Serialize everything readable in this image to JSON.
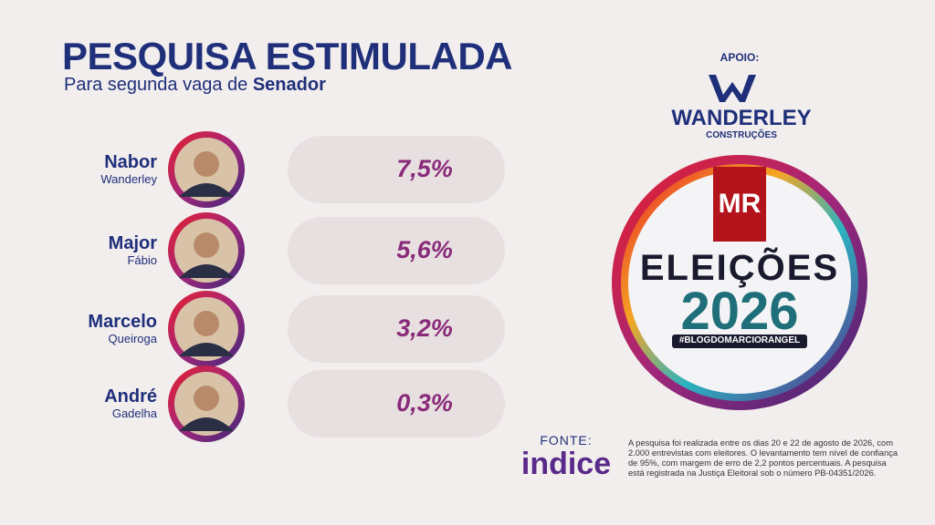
{
  "header": {
    "title": "PESQUISA ESTIMULADA",
    "subtitle": "Para segunda vaga de",
    "subtitle_emphasis": "Senador"
  },
  "candidates": [
    {
      "first_name": "Nabor",
      "last_name": "Wanderley",
      "result": "7,5%"
    },
    {
      "first_name": "Major",
      "last_name": "Fábio",
      "result": "5,6%"
    },
    {
      "first_name": "Marcelo",
      "last_name": "Queiroga",
      "result": "3,2%"
    },
    {
      "first_name": "André",
      "last_name": "Gadelha",
      "result": "0,3%"
    }
  ],
  "sponsor": {
    "label": "APOIO:",
    "name": "WANDERLEY",
    "subname": "CONSTRUÇÕES"
  },
  "badge": {
    "initials": "MR",
    "title": "ELEIÇÕES",
    "year": "2026",
    "hashtag": "#BLOGDOMARCIORANGEL"
  },
  "source": {
    "label": "FONTE:",
    "name": "indice"
  },
  "note": "A pesquisa foi realizada entre os dias 20 e 22 de agosto de 2026, com 2.000 entrevistas com eleitores. O levantamento tem nível de confiança de 95%, com margem de erro de 2,2 pontos percentuais. A pesquisa está registrada na Justiça Eleitoral sob o número PB-04351/2026."
}
